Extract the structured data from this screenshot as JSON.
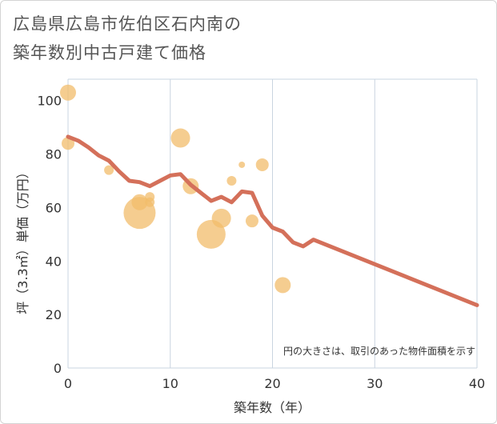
{
  "title_line1": "広島県広島市佐伯区石内南の",
  "title_line2": "築年数別中古戸建て価格",
  "note": "円の大きさは、取引のあった物件面積を示す",
  "colors": {
    "line": "#d4705a",
    "bubble": "#f2bc6b",
    "grid": "#c9d4e0",
    "text": "#333333"
  },
  "chart_data": {
    "type": "scatter",
    "title": "広島県広島市佐伯区石内南の築年数別中古戸建て価格",
    "xlabel": "築年数（年）",
    "ylabel": "坪（3.3㎡）単価（万円）",
    "xlim": [
      0,
      40
    ],
    "ylim": [
      0,
      108
    ],
    "xticks": [
      "0",
      "10",
      "20",
      "30",
      "40"
    ],
    "yticks": [
      "0",
      "20",
      "40",
      "60",
      "80",
      "100"
    ],
    "bubbles": [
      {
        "x": 0,
        "y": 103,
        "size": 10
      },
      {
        "x": 0,
        "y": 84,
        "size": 8
      },
      {
        "x": 4,
        "y": 74,
        "size": 6
      },
      {
        "x": 7,
        "y": 58,
        "size": 20
      },
      {
        "x": 7,
        "y": 62,
        "size": 10
      },
      {
        "x": 8,
        "y": 64,
        "size": 6
      },
      {
        "x": 8,
        "y": 62,
        "size": 6
      },
      {
        "x": 11,
        "y": 86,
        "size": 12
      },
      {
        "x": 12,
        "y": 68,
        "size": 10
      },
      {
        "x": 14,
        "y": 50,
        "size": 18
      },
      {
        "x": 15,
        "y": 56,
        "size": 12
      },
      {
        "x": 16,
        "y": 70,
        "size": 6
      },
      {
        "x": 17,
        "y": 76,
        "size": 4
      },
      {
        "x": 18,
        "y": 55,
        "size": 8
      },
      {
        "x": 19,
        "y": 76,
        "size": 8
      },
      {
        "x": 21,
        "y": 31,
        "size": 10
      }
    ],
    "trend": {
      "x": [
        0,
        1,
        2,
        3,
        4,
        5,
        6,
        7,
        8,
        9,
        10,
        11,
        12,
        13,
        14,
        15,
        16,
        17,
        18,
        19,
        20,
        21,
        22,
        23,
        24,
        40
      ],
      "y": [
        86.5,
        85,
        82.5,
        79.5,
        77.5,
        73.5,
        70,
        69.5,
        68,
        70,
        72,
        72.5,
        68.5,
        65.5,
        62.5,
        64,
        62,
        66,
        65.5,
        57,
        52.5,
        51,
        47,
        45.5,
        48,
        23.5
      ]
    }
  }
}
